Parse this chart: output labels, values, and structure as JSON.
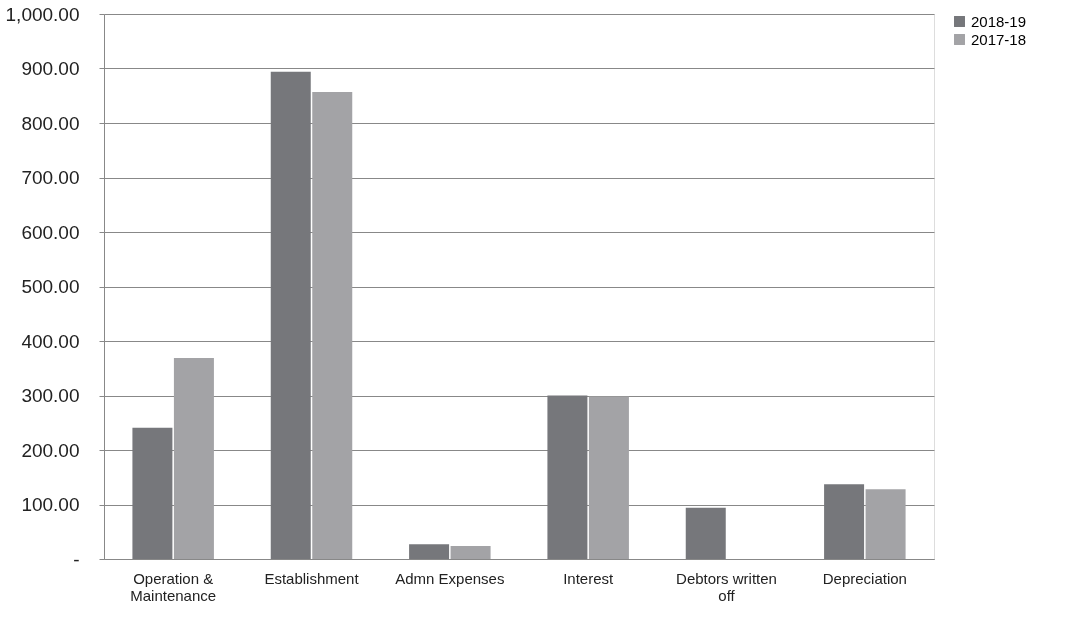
{
  "chart_data": {
    "type": "bar",
    "categories": [
      "Operation & Maintenance",
      "Establishment",
      "Admn Expenses",
      "Interest",
      "Debtors written off",
      "Depreciation"
    ],
    "series": [
      {
        "name": "2018-19",
        "color": "#76777b",
        "values": [
          241,
          894,
          27,
          300,
          94,
          137
        ]
      },
      {
        "name": "2017-18",
        "color": "#a3a3a6",
        "values": [
          369,
          857,
          24,
          298,
          0,
          128
        ]
      }
    ],
    "ylim": [
      0,
      1000
    ],
    "yticks": [
      {
        "value": 0,
        "label": "-"
      },
      {
        "value": 100,
        "label": "100.00"
      },
      {
        "value": 200,
        "label": "200.00"
      },
      {
        "value": 300,
        "label": "300.00"
      },
      {
        "value": 400,
        "label": "400.00"
      },
      {
        "value": 500,
        "label": "500.00"
      },
      {
        "value": 600,
        "label": "600.00"
      },
      {
        "value": 700,
        "label": "700.00"
      },
      {
        "value": 800,
        "label": "800.00"
      },
      {
        "value": 900,
        "label": "900.00"
      },
      {
        "value": 1000,
        "label": "1,000.00"
      }
    ],
    "grid": "y",
    "legend": "right"
  }
}
